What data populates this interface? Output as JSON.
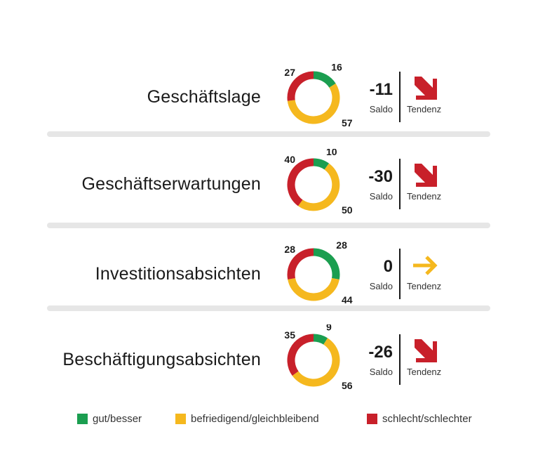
{
  "colors": {
    "good": "#1b9e50",
    "neutral": "#f5b81e",
    "bad": "#c8202a",
    "separator": "#e6e6e6"
  },
  "chart_data": {
    "type": "pie",
    "rows": [
      {
        "label": "Geschäftslage",
        "good": 16,
        "neutral": 57,
        "bad": 27,
        "saldo": "-11",
        "saldo_label": "Saldo",
        "tendency": "down",
        "tendency_label": "Tendenz"
      },
      {
        "label": "Geschäftserwartungen",
        "good": 10,
        "neutral": 50,
        "bad": 40,
        "saldo": "-30",
        "saldo_label": "Saldo",
        "tendency": "down",
        "tendency_label": "Tendenz"
      },
      {
        "label": "Investitionsabsichten",
        "good": 28,
        "neutral": 44,
        "bad": 28,
        "saldo": "0",
        "saldo_label": "Saldo",
        "tendency": "flat",
        "tendency_label": "Tendenz"
      },
      {
        "label": "Beschäftigungsabsichten",
        "good": 9,
        "neutral": 56,
        "bad": 35,
        "saldo": "-26",
        "saldo_label": "Saldo",
        "tendency": "down",
        "tendency_label": "Tendenz"
      }
    ],
    "legend": [
      {
        "name": "gut/besser",
        "key": "good"
      },
      {
        "name": "befriedigend/gleichbleibend",
        "key": "neutral"
      },
      {
        "name": "schlecht/schlechter",
        "key": "bad"
      }
    ]
  }
}
